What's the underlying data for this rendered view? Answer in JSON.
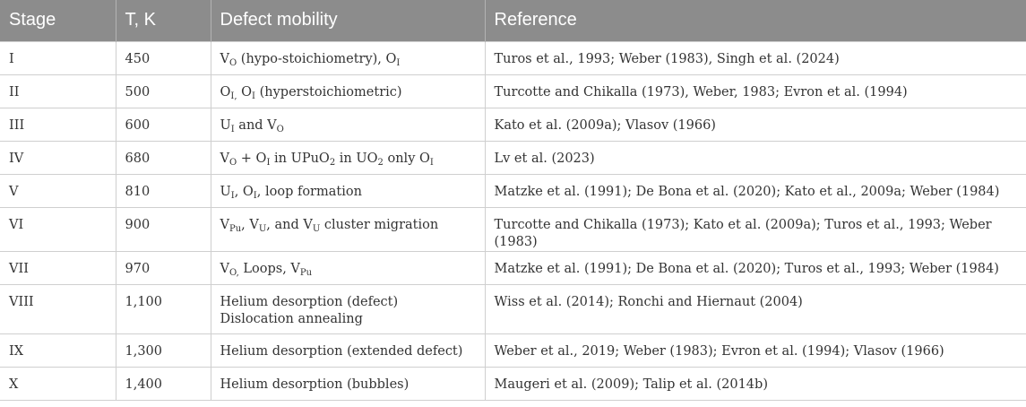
{
  "headers": {
    "stage": "Stage",
    "temperature": "T, K",
    "mobility": "Defect mobility",
    "reference": "Reference"
  },
  "rows": [
    {
      "stage": "I",
      "temperature": "450",
      "mobility": [
        {
          "t": "V"
        },
        {
          "s": "O"
        },
        {
          "t": " (hypo-stoichiometry), O"
        },
        {
          "s": "I"
        }
      ],
      "reference": "Turos et al., 1993; Weber (1983), Singh et al. (2024)"
    },
    {
      "stage": "II",
      "temperature": "500",
      "mobility": [
        {
          "t": "O"
        },
        {
          "s": "I,"
        },
        {
          "t": " O"
        },
        {
          "s": "I"
        },
        {
          "t": " (hyperstoichiometric)"
        }
      ],
      "reference": "Turcotte and Chikalla (1973), Weber, 1983; Evron et al. (1994)"
    },
    {
      "stage": "III",
      "temperature": "600",
      "mobility": [
        {
          "t": "U"
        },
        {
          "s": "I"
        },
        {
          "t": " and V"
        },
        {
          "s": "O"
        }
      ],
      "reference": "Kato et al. (2009a); Vlasov (1966)"
    },
    {
      "stage": "IV",
      "temperature": "680",
      "mobility": [
        {
          "t": "V"
        },
        {
          "s": "O"
        },
        {
          "t": " + O"
        },
        {
          "s": "I"
        },
        {
          "t": " in UPuO"
        },
        {
          "s": "2"
        },
        {
          "t": " in UO"
        },
        {
          "s": "2"
        },
        {
          "t": " only O"
        },
        {
          "s": "I"
        }
      ],
      "reference": "Lv et al. (2023)"
    },
    {
      "stage": "V",
      "temperature": "810",
      "mobility": [
        {
          "t": "U"
        },
        {
          "s": "I"
        },
        {
          "t": ", O"
        },
        {
          "s": "I"
        },
        {
          "t": ", loop formation"
        }
      ],
      "reference": "Matzke et al. (1991); De Bona et al. (2020); Kato et al., 2009a; Weber (1984)"
    },
    {
      "stage": "VI",
      "temperature": "900",
      "mobility": [
        {
          "t": "V"
        },
        {
          "s": "Pu"
        },
        {
          "t": ", V"
        },
        {
          "s": "U"
        },
        {
          "t": ", and V"
        },
        {
          "s": "U"
        },
        {
          "t": " cluster migration"
        }
      ],
      "reference": "Turcotte and Chikalla (1973); Kato et al. (2009a); Turos et al., 1993; Weber (1983)"
    },
    {
      "stage": "VII",
      "temperature": "970",
      "mobility": [
        {
          "t": "V"
        },
        {
          "s": "O,"
        },
        {
          "t": " Loops, V"
        },
        {
          "s": "Pu"
        }
      ],
      "reference": "Matzke et al. (1991); De Bona et al. (2020); Turos et al., 1993; Weber (1984)"
    },
    {
      "stage": "VIII",
      "temperature": "1,100",
      "mobility": [
        {
          "t": "Helium desorption (defect)"
        },
        {
          "br": true
        },
        {
          "t": "Dislocation annealing"
        }
      ],
      "reference": "Wiss et al. (2014); Ronchi and Hiernaut (2004)"
    },
    {
      "stage": "IX",
      "temperature": "1,300",
      "mobility": [
        {
          "t": "Helium desorption (extended defect)"
        }
      ],
      "reference": "Weber et al., 2019; Weber (1983); Evron et al. (1994); Vlasov (1966)"
    },
    {
      "stage": "X",
      "temperature": "1,400",
      "mobility": [
        {
          "t": "Helium desorption (bubbles)"
        }
      ],
      "reference": "Maugeri et al. (2009); Talip et al. (2014b)"
    }
  ]
}
